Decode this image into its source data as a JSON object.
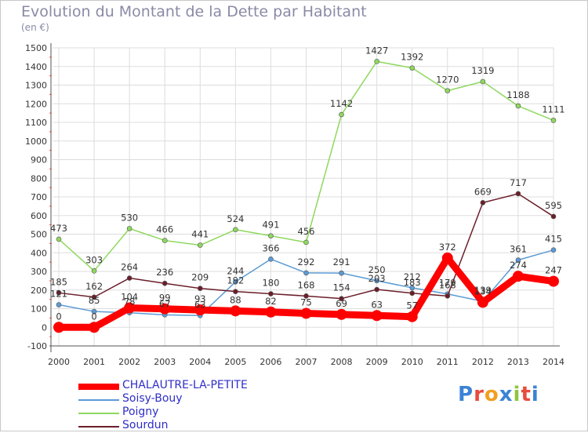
{
  "header": {
    "title": "Evolution du Montant de la Dette par Habitant",
    "unit": "(en €)"
  },
  "brand": {
    "text": "Proxiti"
  },
  "chart_data": {
    "type": "line",
    "title": "Evolution du Montant de la Dette par Habitant",
    "ylabel": "(en €)",
    "xlabel": "",
    "x": [
      "2000",
      "2001",
      "2002",
      "2003",
      "2004",
      "2005",
      "2006",
      "2007",
      "2008",
      "2009",
      "2010",
      "2011",
      "2012",
      "2013",
      "2014"
    ],
    "ylim": [
      -100,
      1500
    ],
    "yticks": [
      -100,
      0,
      100,
      200,
      300,
      400,
      500,
      600,
      700,
      800,
      900,
      1000,
      1100,
      1200,
      1300,
      1400,
      1500
    ],
    "grid": true,
    "legend_position": "bottom-left",
    "series": [
      {
        "name": "Soisy-Bouy",
        "color": "#5b9bd5",
        "values": [
          121,
          85,
          78,
          67,
          63,
          244,
          366,
          292,
          291,
          250,
          212,
          179,
          139,
          361,
          415
        ]
      },
      {
        "name": "Poigny",
        "color": "#8ed85f",
        "values": [
          473,
          303,
          530,
          466,
          441,
          524,
          491,
          456,
          1142,
          1427,
          1392,
          1270,
          1319,
          1188,
          1111
        ]
      },
      {
        "name": "Sourdun",
        "color": "#6b1e2a",
        "values": [
          185,
          162,
          264,
          236,
          209,
          192,
          180,
          168,
          154,
          203,
          183,
          168,
          669,
          717,
          595
        ]
      },
      {
        "name": "CHALAUTRE-LA-PETITE",
        "color": "#ff0000",
        "values": [
          0,
          0,
          104,
          99,
          93,
          88,
          82,
          75,
          69,
          63,
          57,
          372,
          134,
          274,
          247
        ]
      }
    ]
  }
}
